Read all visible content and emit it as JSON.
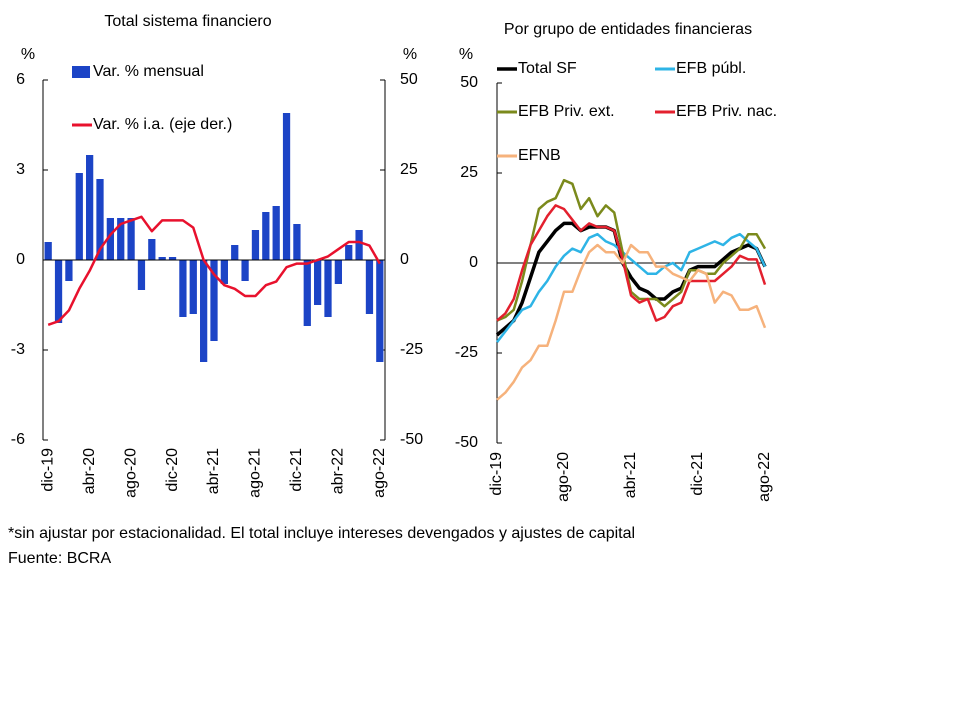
{
  "chart_data": [
    {
      "type": "combo",
      "title": "Total sistema financiero",
      "y_label": "%",
      "y2_label": "%",
      "categories": [
        "dic-19",
        null,
        null,
        null,
        "abr-20",
        null,
        null,
        null,
        "ago-20",
        null,
        null,
        null,
        "dic-20",
        null,
        null,
        null,
        "abr-21",
        null,
        null,
        null,
        "ago-21",
        null,
        null,
        null,
        "dic-21",
        null,
        null,
        null,
        "abr-22",
        null,
        null,
        null,
        "ago-22"
      ],
      "ylim": [
        -6,
        6
      ],
      "yticks": [
        -6,
        -3,
        0,
        3,
        6
      ],
      "y2lim": [
        -50,
        50
      ],
      "y2ticks": [
        -50,
        -25,
        0,
        25,
        50
      ],
      "series": [
        {
          "name": "Var. % mensual",
          "type": "bar",
          "color": "#1c44c6",
          "values": [
            0.6,
            -2.1,
            -0.7,
            2.9,
            3.5,
            2.7,
            1.4,
            1.4,
            1.4,
            -1.0,
            0.7,
            0.1,
            0.1,
            -1.9,
            -1.8,
            -3.4,
            -2.7,
            -0.8,
            0.5,
            -0.7,
            1.0,
            1.6,
            1.8,
            4.9,
            1.2,
            -2.2,
            -1.5,
            -1.9,
            -0.8,
            0.5,
            1.0,
            -1.8,
            -3.4
          ]
        },
        {
          "name": "Var. % i.a. (eje der.)",
          "type": "line",
          "axis": "y2",
          "color": "#e8112d",
          "values": [
            -18,
            -17,
            -14,
            -8,
            -3,
            3,
            7,
            10,
            11,
            12,
            8,
            11,
            11,
            11,
            9,
            0,
            -4,
            -7,
            -8,
            -10,
            -10,
            -7,
            -6,
            -2,
            -1,
            -1,
            0,
            1,
            3,
            5,
            5,
            4,
            -1
          ]
        }
      ]
    },
    {
      "type": "line",
      "title": "Por grupo de entidades financieras",
      "y_label": "%",
      "categories": [
        "dic-19",
        null,
        null,
        null,
        null,
        null,
        null,
        null,
        "ago-20",
        null,
        null,
        null,
        null,
        null,
        null,
        null,
        "abr-21",
        null,
        null,
        null,
        null,
        null,
        null,
        null,
        "dic-21",
        null,
        null,
        null,
        null,
        null,
        null,
        null,
        "ago-22"
      ],
      "ylim": [
        -50,
        50
      ],
      "yticks": [
        -50,
        -25,
        0,
        25,
        50
      ],
      "series": [
        {
          "name": "Total SF",
          "color": "#000000",
          "values": [
            -20,
            -18,
            -16,
            -11,
            -4,
            3,
            6,
            9,
            11,
            11,
            9,
            10,
            10,
            10,
            9,
            0,
            -4,
            -7,
            -8,
            -10,
            -10,
            -8,
            -7,
            -2,
            -1,
            -1,
            -1,
            1,
            3,
            4,
            5,
            4,
            -1
          ]
        },
        {
          "name": "EFB públ.",
          "color": "#2eb4e6",
          "values": [
            -22,
            -19,
            -16,
            -13,
            -12,
            -8,
            -5,
            -1,
            2,
            4,
            3,
            7,
            8,
            6,
            5,
            3,
            1,
            -1,
            -3,
            -3,
            -1,
            0,
            -2,
            3,
            4,
            5,
            6,
            5,
            7,
            8,
            6,
            4,
            -1
          ]
        },
        {
          "name": "EFB Priv. ext.",
          "color": "#7b8a1c",
          "values": [
            -16,
            -15,
            -13,
            -5,
            5,
            15,
            17,
            18,
            23,
            22,
            15,
            18,
            13,
            16,
            14,
            3,
            -8,
            -10,
            -10,
            -10,
            -12,
            -10,
            -8,
            -2,
            -2,
            -3,
            -3,
            0,
            2,
            4,
            8,
            8,
            4
          ]
        },
        {
          "name": "EFB Priv. nac.",
          "color": "#e3202e",
          "values": [
            -16,
            -14,
            -10,
            -2,
            5,
            9,
            13,
            16,
            15,
            12,
            9,
            11,
            10,
            10,
            9,
            1,
            -9,
            -11,
            -10,
            -16,
            -15,
            -12,
            -11,
            -5,
            -5,
            -5,
            -5,
            -3,
            -1,
            2,
            1,
            1,
            -6
          ]
        },
        {
          "name": "EFNB",
          "color": "#f6b27c",
          "values": [
            -38,
            -36,
            -33,
            -29,
            -27,
            -23,
            -23,
            -16,
            -8,
            -8,
            -2,
            3,
            5,
            3,
            3,
            0,
            5,
            3,
            3,
            -1,
            -1,
            -3,
            -4,
            -5,
            -2,
            -3,
            -11,
            -8,
            -9,
            -13,
            -13,
            -12,
            -18
          ]
        }
      ]
    }
  ],
  "footer": {
    "note": "*sin ajustar por estacionalidad. El total incluye intereses devengados y ajustes de capital",
    "source": "Fuente: BCRA"
  }
}
